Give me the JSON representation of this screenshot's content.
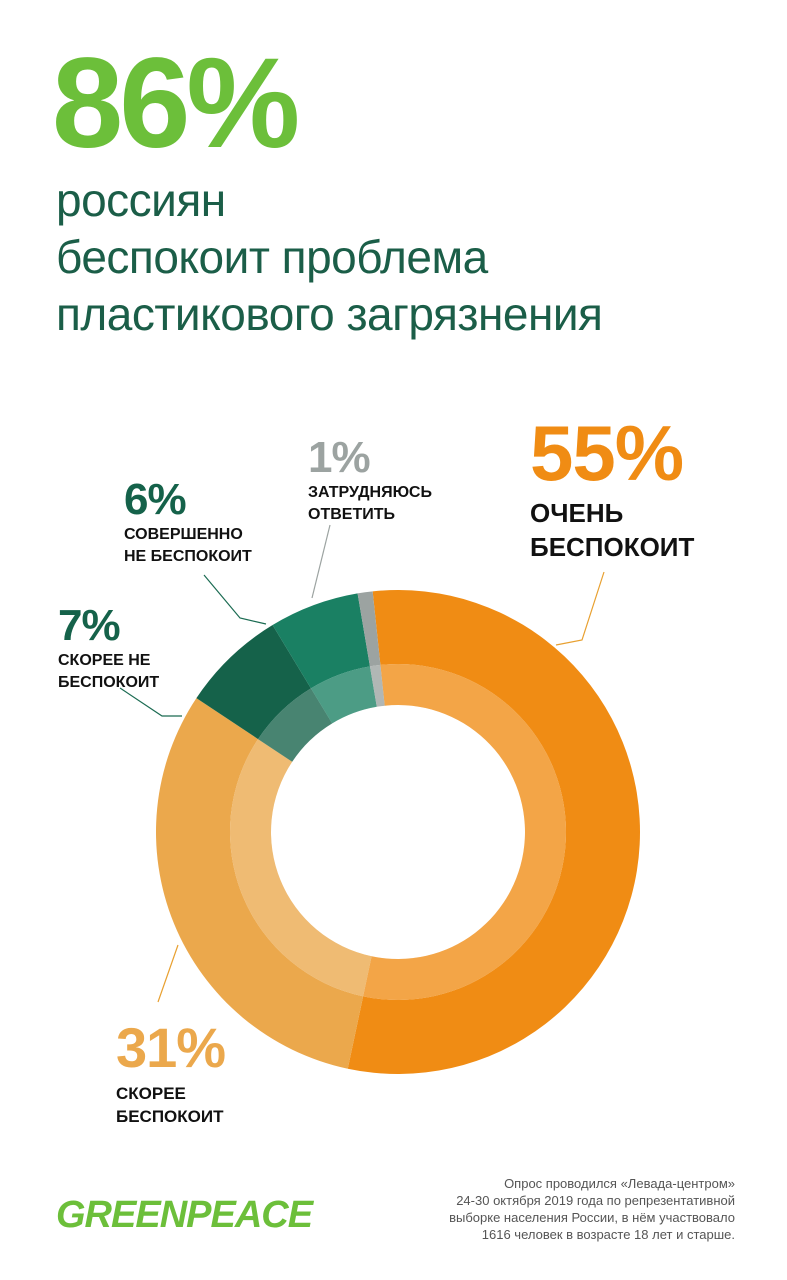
{
  "headline": {
    "value": "86%",
    "lines": [
      "россиян",
      "беспокоит проблема",
      "пластикового загрязнения"
    ]
  },
  "colors": {
    "headline_value": "#6cbf3a",
    "headline_text": "#1b5e48",
    "very_concerned": "#f08c14",
    "rather_concerned": "#eba84c",
    "rather_not_concerned": "#15624a",
    "not_concerned_at_all": "#1a8063",
    "hard_to_answer": "#9ca3a1",
    "leader_line": "#e8a030",
    "leader_line_green": "#1b6b52",
    "leader_line_gray": "#9ca3a1",
    "logo": "#6cbf3a"
  },
  "chart_data": {
    "type": "pie",
    "style": "donut",
    "unit": "%",
    "slices": [
      {
        "value": 55,
        "label_pct": "55%",
        "label_lines": [
          "ОЧЕНЬ",
          "БЕСПОКОИТ"
        ],
        "color": "#f08c14"
      },
      {
        "value": 31,
        "label_pct": "31%",
        "label_lines": [
          "СКОРЕЕ",
          "БЕСПОКОИТ"
        ],
        "color": "#eba84c"
      },
      {
        "value": 7,
        "label_pct": "7%",
        "label_lines": [
          "СКОРЕЕ НЕ",
          "БЕСПОКОИТ"
        ],
        "color": "#15624a"
      },
      {
        "value": 6,
        "label_pct": "6%",
        "label_lines": [
          "СОВЕРШЕННО",
          "НЕ БЕСПОКОИТ"
        ],
        "color": "#1a8063"
      },
      {
        "value": 1,
        "label_pct": "1%",
        "label_lines": [
          "ЗАТРУДНЯЮСЬ",
          "ОТВЕТИТЬ"
        ],
        "color": "#9ca3a1"
      }
    ],
    "start_angle": "top",
    "direction": "clockwise"
  },
  "footnote": {
    "lines": [
      "Опрос проводился «Левада-центром»",
      "24-30 октября 2019 года по репрезентативной",
      "выборке населения России, в нём участвовало",
      "1616 человек в возрасте 18 лет и старше."
    ]
  },
  "logo": {
    "text": "GREENPEACE"
  }
}
